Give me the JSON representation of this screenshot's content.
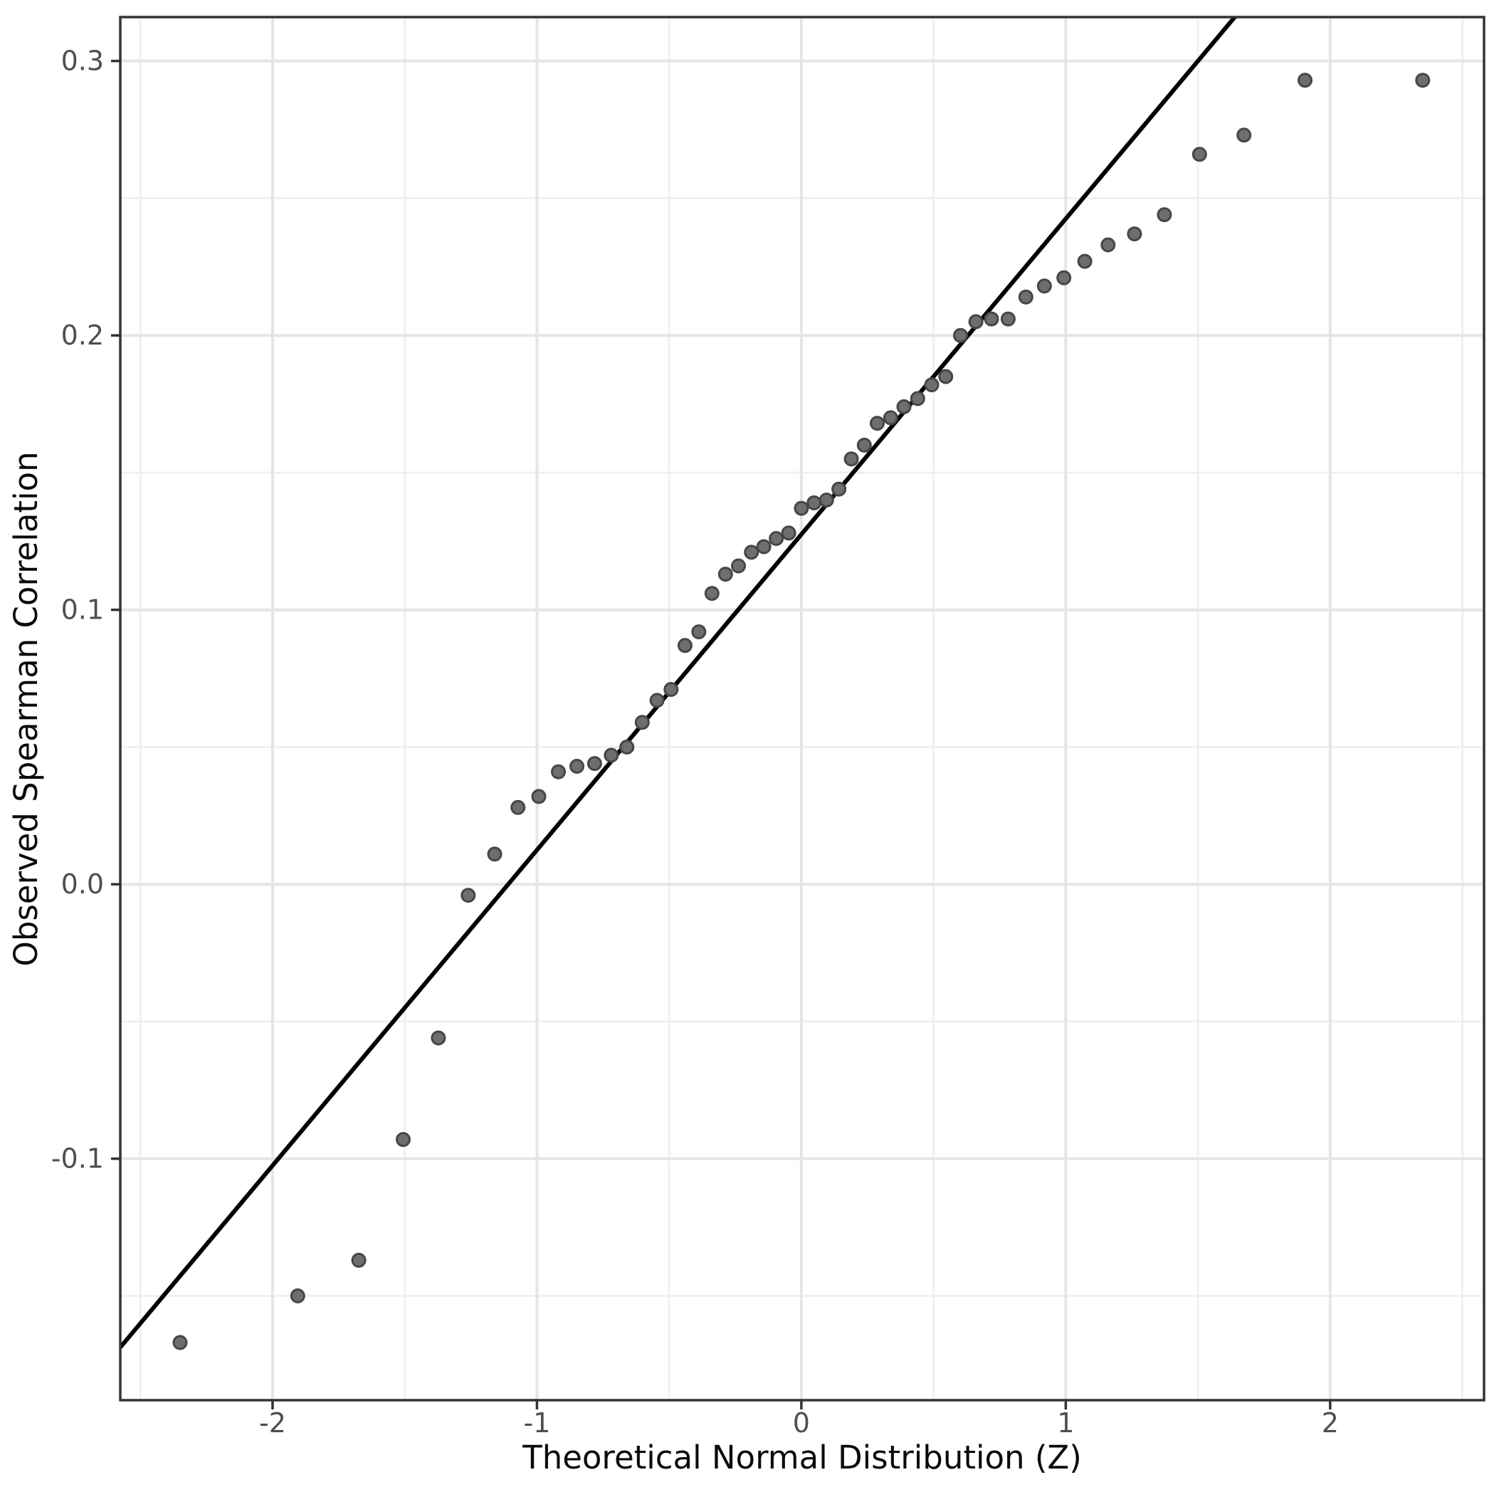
{
  "chart_data": {
    "type": "scatter",
    "title": "",
    "xlabel": "Theoretical Normal Distribution (Z)",
    "ylabel": "Observed Spearman Correlation",
    "xlim": [
      -2.576,
      2.582
    ],
    "ylim": [
      -0.188,
      0.316
    ],
    "grid": true,
    "legend": "none",
    "x_ticks": [
      {
        "v": -2,
        "label": "-2"
      },
      {
        "v": -1,
        "label": "-1"
      },
      {
        "v": 0,
        "label": "0"
      },
      {
        "v": 1,
        "label": "1"
      },
      {
        "v": 2,
        "label": "2"
      }
    ],
    "y_ticks": [
      {
        "v": 0.3,
        "label": "0.3"
      },
      {
        "v": 0.2,
        "label": "0.2"
      },
      {
        "v": 0.1,
        "label": "0.1"
      },
      {
        "v": 0.0,
        "label": "0.0"
      },
      {
        "v": -0.1,
        "label": "-0.1"
      }
    ],
    "x_minor": [
      -2.5,
      -1.5,
      -0.5,
      0.5,
      1.5,
      2.5
    ],
    "y_minor": [
      0.25,
      0.15,
      0.05,
      -0.05,
      -0.15
    ],
    "points": [
      [
        -2.35,
        -0.167
      ],
      [
        -1.905,
        -0.15
      ],
      [
        -1.674,
        -0.137
      ],
      [
        -1.506,
        -0.093
      ],
      [
        -1.373,
        -0.056
      ],
      [
        -1.26,
        -0.004
      ],
      [
        -1.16,
        0.011
      ],
      [
        -1.072,
        0.028
      ],
      [
        -0.993,
        0.032
      ],
      [
        -0.919,
        0.041
      ],
      [
        -0.849,
        0.043
      ],
      [
        -0.782,
        0.044
      ],
      [
        -0.719,
        0.047
      ],
      [
        -0.66,
        0.05
      ],
      [
        -0.602,
        0.059
      ],
      [
        -0.546,
        0.067
      ],
      [
        -0.493,
        0.071
      ],
      [
        -0.44,
        0.087
      ],
      [
        -0.388,
        0.092
      ],
      [
        -0.338,
        0.106
      ],
      [
        -0.287,
        0.113
      ],
      [
        -0.238,
        0.116
      ],
      [
        -0.189,
        0.121
      ],
      [
        -0.142,
        0.123
      ],
      [
        -0.095,
        0.126
      ],
      [
        -0.048,
        0.128
      ],
      [
        0.0,
        0.137
      ],
      [
        0.048,
        0.139
      ],
      [
        0.095,
        0.14
      ],
      [
        0.142,
        0.144
      ],
      [
        0.189,
        0.155
      ],
      [
        0.238,
        0.16
      ],
      [
        0.287,
        0.168
      ],
      [
        0.338,
        0.17
      ],
      [
        0.388,
        0.174
      ],
      [
        0.44,
        0.177
      ],
      [
        0.493,
        0.182
      ],
      [
        0.546,
        0.185
      ],
      [
        0.602,
        0.2
      ],
      [
        0.66,
        0.205
      ],
      [
        0.719,
        0.206
      ],
      [
        0.782,
        0.206
      ],
      [
        0.849,
        0.214
      ],
      [
        0.919,
        0.218
      ],
      [
        0.993,
        0.221
      ],
      [
        1.072,
        0.227
      ],
      [
        1.16,
        0.233
      ],
      [
        1.26,
        0.237
      ],
      [
        1.373,
        0.244
      ],
      [
        1.506,
        0.266
      ],
      [
        1.674,
        0.273
      ],
      [
        1.905,
        0.293
      ],
      [
        2.35,
        0.293
      ]
    ],
    "ref_line": {
      "slope": 0.115,
      "intercept": 0.1275
    },
    "colors": {
      "background": "#ffffff",
      "panel_fill": "#ffffff",
      "grid_major": "#e5e5e5",
      "grid_minor": "#f0f0f0",
      "panel_border": "#333333",
      "tick_mark": "#333333",
      "tick_label": "#4f4f4f",
      "axis_title": "#0a0a0a",
      "point_fill": "#6e6e6e",
      "point_stroke": "#464646",
      "ref_line_color": "#000000"
    }
  }
}
